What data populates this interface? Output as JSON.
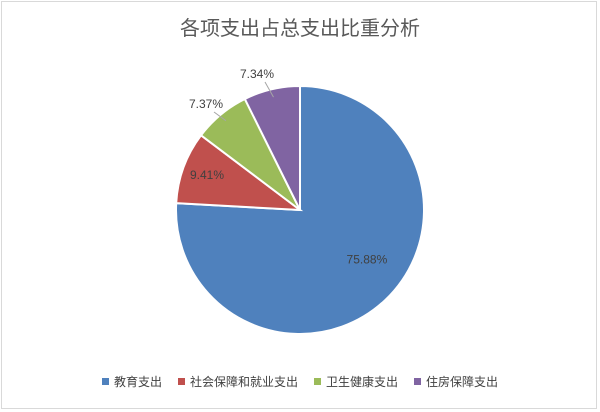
{
  "chart_data": {
    "type": "pie",
    "title": "各项支出占总支出比重分析",
    "slices": [
      {
        "name": "教育支出",
        "value": 75.88,
        "label": "75.88%",
        "color": "#4f81bd"
      },
      {
        "name": "社会保障和就业支出",
        "value": 9.41,
        "label": "9.41%",
        "color": "#c0504d"
      },
      {
        "name": "卫生健康支出",
        "value": 7.37,
        "label": "7.37%",
        "color": "#9bbb59"
      },
      {
        "name": "住房保障支出",
        "value": 7.34,
        "label": "7.34%",
        "color": "#8064a2"
      }
    ],
    "legend_position": "bottom",
    "start_angle": "12 o'clock",
    "direction": "clockwise"
  }
}
